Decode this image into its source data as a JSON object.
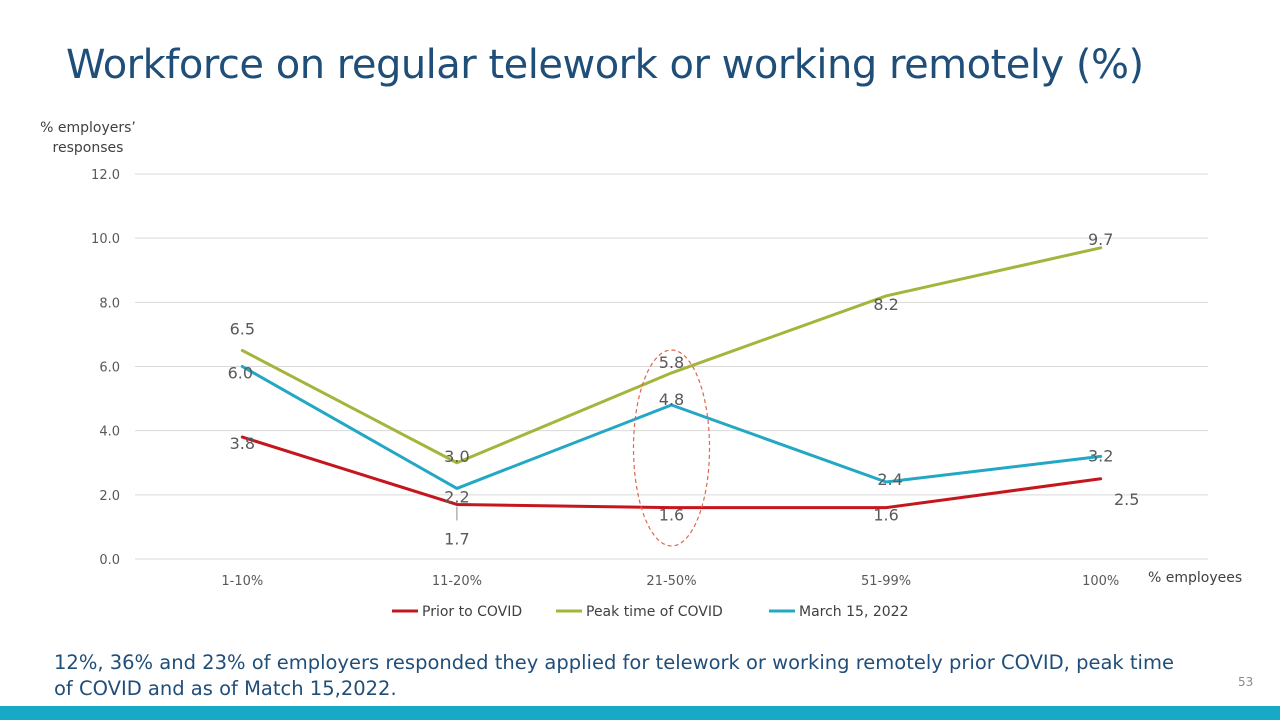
{
  "title": "Workforce on regular telework or working remotely (%)",
  "caption": "12%,    36% and 23% of employers responded they applied for telework or working remotely prior COVID, peak time of COVID and as of Match 15,2022.",
  "page_number": "53",
  "colors": {
    "title": "#1f4e79",
    "bottom_bar": "#17a9c5",
    "prior": "#c5161d",
    "peak": "#a5b43b",
    "march": "#22a7c4",
    "highlight": "#e06650"
  },
  "chart_data": {
    "type": "line",
    "categories": [
      "1-10%",
      "11-20%",
      "21-50%",
      "51-99%",
      "100%"
    ],
    "ylabel": "% employers’ responses",
    "xlabel": "% employees",
    "ylim": [
      0,
      12
    ],
    "yticks": [
      "0.0",
      "2.0",
      "4.0",
      "6.0",
      "8.0",
      "10.0",
      "12.0"
    ],
    "grid": true,
    "legend_position": "bottom",
    "series": [
      {
        "name": "Prior to COVID",
        "values": [
          3.8,
          1.7,
          1.6,
          1.6,
          2.5
        ],
        "labels": [
          "3.8",
          "1.7",
          "1.6",
          "1.6",
          "2.5"
        ]
      },
      {
        "name": "Peak time of COVID",
        "values": [
          6.5,
          3.0,
          5.8,
          8.2,
          9.7
        ],
        "labels": [
          "6.5",
          "3.0",
          "5.8",
          "8.2",
          "9.7"
        ]
      },
      {
        "name": "March 15, 2022",
        "values": [
          6.0,
          2.2,
          4.8,
          2.4,
          3.2
        ],
        "labels": [
          "6.0",
          "2.2",
          "4.8",
          "2.4",
          "3.2"
        ]
      }
    ],
    "highlighted_category": "21-50%"
  }
}
